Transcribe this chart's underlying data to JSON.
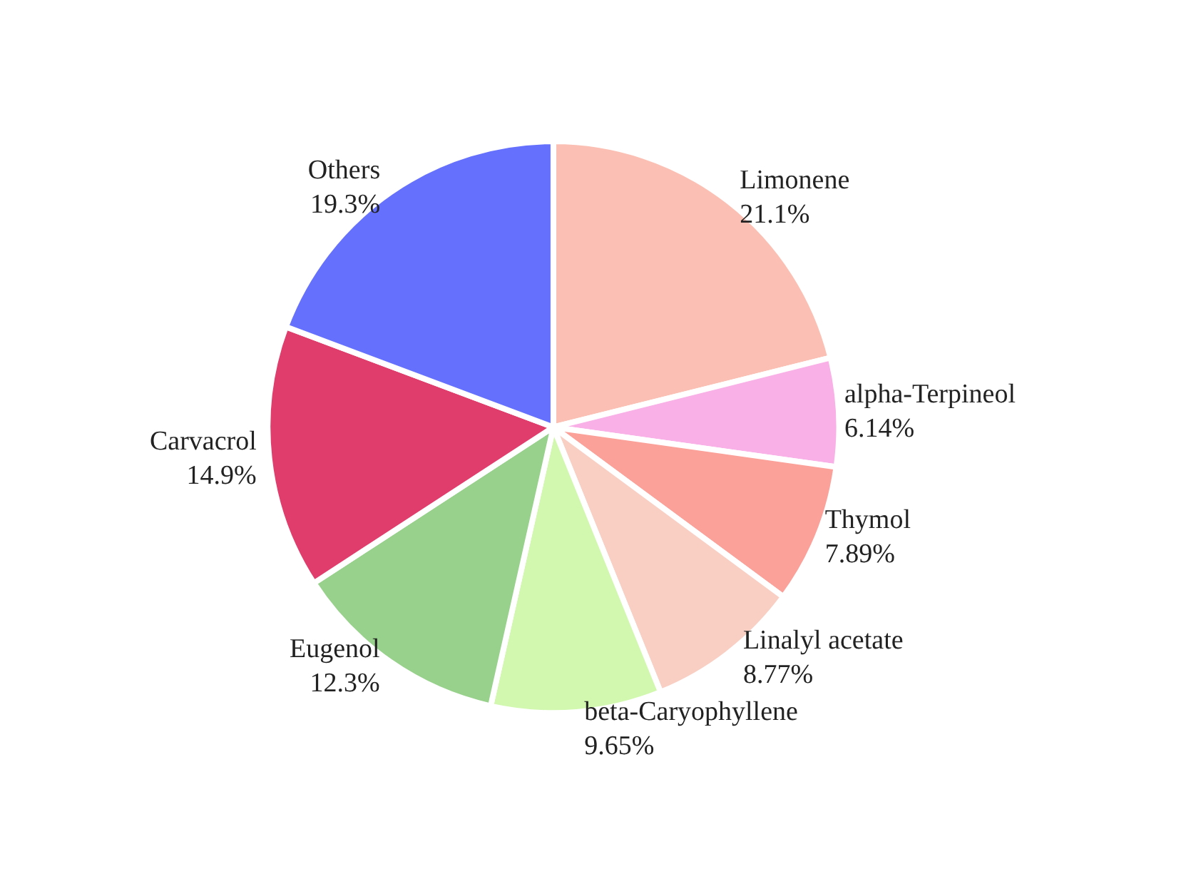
{
  "chart_data": {
    "type": "pie",
    "categories": [
      "Limonene",
      "alpha-Terpineol",
      "Thymol",
      "Linalyl acetate",
      "beta-Caryophyllene",
      "Eugenol",
      "Carvacrol",
      "Others"
    ],
    "values": [
      21.1,
      6.14,
      7.89,
      8.77,
      9.65,
      12.3,
      14.9,
      19.3
    ],
    "value_labels": [
      "21.1%",
      "6.14%",
      "7.89%",
      "8.77%",
      "9.65%",
      "12.3%",
      "14.9%",
      "19.3%"
    ],
    "colors": [
      "#fbc0b3",
      "#f9b0e6",
      "#fca09a",
      "#f9cfc4",
      "#d2f8b0",
      "#98d18b",
      "#e03c6c",
      "#6571fd"
    ],
    "legend": false
  }
}
